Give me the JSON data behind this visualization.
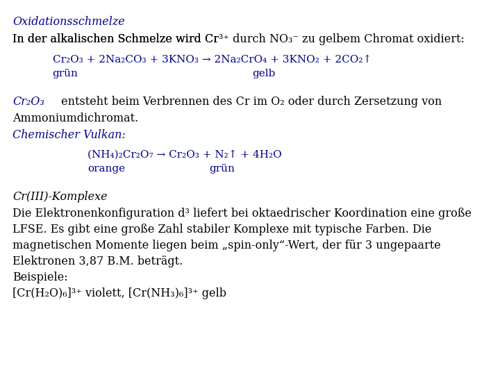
{
  "bg_color": "#ffffff",
  "blue": "#00008B",
  "black": "#000000",
  "title": "Oxidationsschmelze",
  "line1a": "In der alkalischen Schmelze wird Cr",
  "line1b": "3+",
  "line1c": " durch NO",
  "line1d": "3",
  "line1e": "⁻",
  "line1f": " zu gelbem Chromat oxidiert:",
  "eq1": "Cr₂O₃ + 2Na₂CO₃ + 3KNO₃ → 2Na₂CrO₄ + 3KNO₂ + 2CO₂↑",
  "eq1_gruen": "grün",
  "eq1_gelb": "gelb",
  "cr2o3_line1": "Cr₂O₃",
  "cr2o3_line1b": " entsteht beim Verbrennen des Cr im O₂ oder durch Zersetzung von",
  "ammon": "Ammoniumdichromat.",
  "vulkan": "Chemischer Vulkan:",
  "eq2": "(NH₄)₂Cr₂O₇ → Cr₂O₃ + N₂↑ + 4H₂O",
  "eq2_orange": "orange",
  "eq2_gruen": "grün",
  "cr3_title": "Cr(III)-Komplexe",
  "body1": "Die Elektronenkonfiguration d³ liefert bei oktaedrischer Koordination eine große",
  "body2": "LFSE. Es gibt eine große Zahl stabiler Komplexe mit typische Farben. Die",
  "body3": "magnetischen Momente liegen beim „spin-only“-Wert, der für 3 ungepaarte",
  "body4": "Elektronen 3,87 B.M. beträgt.",
  "body5": "Beispiele:",
  "body6a": "[Cr(H₂O)₆]",
  "body6b": "3+",
  "body6c": " violett, [Cr(NH₃)₆]",
  "body6d": "3+",
  "body6e": " gelb",
  "fs": 11.5,
  "fs_eq": 11,
  "lh": 0.052
}
